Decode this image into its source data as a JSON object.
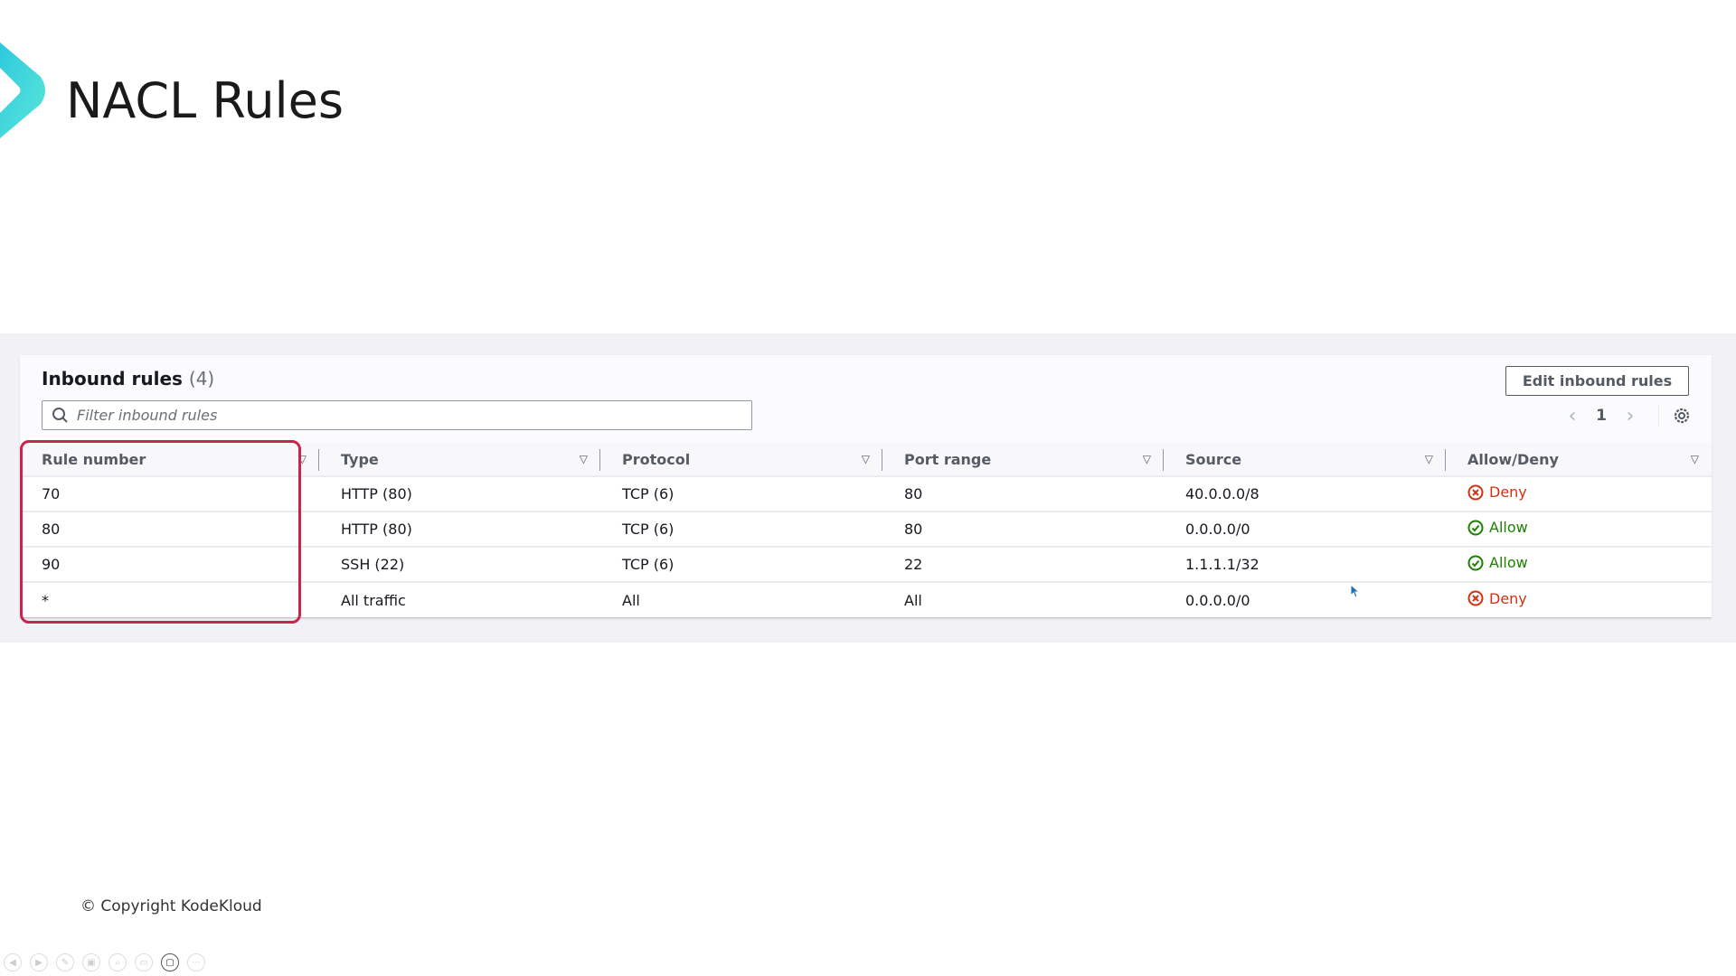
{
  "slide": {
    "title": "NACL Rules",
    "copyright": "© Copyright KodeKloud"
  },
  "panel": {
    "title": "Inbound rules",
    "count": "(4)",
    "filter_placeholder": "Filter inbound rules",
    "edit_button": "Edit inbound rules",
    "page": "1",
    "columns": [
      "Rule number",
      "Type",
      "Protocol",
      "Port range",
      "Source",
      "Allow/Deny"
    ],
    "rows": [
      {
        "rule": "70",
        "type": "HTTP (80)",
        "protocol": "TCP (6)",
        "port": "80",
        "source": "40.0.0.0/8",
        "action": "Deny"
      },
      {
        "rule": "80",
        "type": "HTTP (80)",
        "protocol": "TCP (6)",
        "port": "80",
        "source": "0.0.0.0/0",
        "action": "Allow"
      },
      {
        "rule": "90",
        "type": "SSH (22)",
        "protocol": "TCP (6)",
        "port": "22",
        "source": "1.1.1.1/32",
        "action": "Allow"
      },
      {
        "rule": "*",
        "type": "All traffic",
        "protocol": "All",
        "port": "All",
        "source": "0.0.0.0/0",
        "action": "Deny"
      }
    ]
  },
  "colors": {
    "highlight": "#c7254e",
    "deny": "#d13212",
    "allow": "#1d8102",
    "logo": "#3fd6dc"
  }
}
